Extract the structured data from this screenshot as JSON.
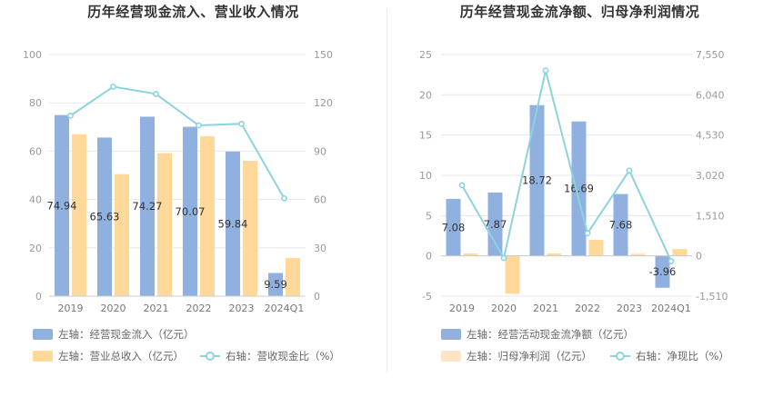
{
  "colors": {
    "inflow": "#90b0df",
    "revenue": "#ffd89a",
    "ratio": "#8dd3dd",
    "grid": "#e8e8e8"
  },
  "chart_data": [
    {
      "type": "bar",
      "title": "历年经营现金流入、营业收入情况",
      "categories": [
        "2019",
        "2020",
        "2021",
        "2022",
        "2023",
        "2024Q1"
      ],
      "left_axis": {
        "min": 0,
        "max": 100,
        "ticks": [
          "0",
          "20",
          "40",
          "60",
          "80",
          "100"
        ]
      },
      "right_axis": {
        "min": 0,
        "max": 150,
        "ticks": [
          "0",
          "30",
          "60",
          "90",
          "120",
          "150"
        ]
      },
      "series": [
        {
          "name": "左轴：经营现金流入（亿元）",
          "type": "bar",
          "axis": "left",
          "values": [
            74.94,
            65.63,
            74.27,
            70.07,
            59.84,
            9.59
          ],
          "labels": [
            "74.94",
            "65.63",
            "74.27",
            "70.07",
            "59.84",
            "9.59"
          ]
        },
        {
          "name": "左轴：营业总收入（亿元）",
          "type": "bar",
          "axis": "left",
          "values": [
            67,
            50.5,
            59.2,
            66.2,
            56,
            15.8
          ]
        },
        {
          "name": "右轴：营收现金比（%）",
          "type": "line",
          "axis": "right",
          "values": [
            112,
            130,
            125.5,
            106,
            107,
            60.7
          ]
        }
      ]
    },
    {
      "type": "bar",
      "title": "历年经营现金流净额、归母净利润情况",
      "categories": [
        "2019",
        "2020",
        "2021",
        "2022",
        "2023",
        "2024Q1"
      ],
      "left_axis": {
        "min": -5,
        "max": 25,
        "ticks": [
          "-5",
          "0",
          "5",
          "10",
          "15",
          "20",
          "25"
        ]
      },
      "right_axis": {
        "min": -1510,
        "max": 7550,
        "ticks": [
          "-1,510",
          "0",
          "1,510",
          "3,020",
          "4,530",
          "6,040",
          "7,550"
        ]
      },
      "series": [
        {
          "name": "左轴：经营活动现金流净额（亿元）",
          "type": "bar",
          "axis": "left",
          "values": [
            7.08,
            7.87,
            18.72,
            16.69,
            7.68,
            -3.96
          ],
          "labels": [
            "7.08",
            "7.87",
            "18.72",
            "16.69",
            "7.68",
            "-3.96"
          ]
        },
        {
          "name": "左轴：归母净利润（亿元）",
          "type": "bar",
          "axis": "left",
          "values": [
            0.3,
            -4.7,
            0.3,
            2.0,
            0.25,
            0.85
          ]
        },
        {
          "name": "右轴：净现比（%）",
          "type": "line",
          "axis": "right",
          "values": [
            2650,
            -80,
            6950,
            850,
            3200,
            -200
          ]
        }
      ]
    }
  ]
}
